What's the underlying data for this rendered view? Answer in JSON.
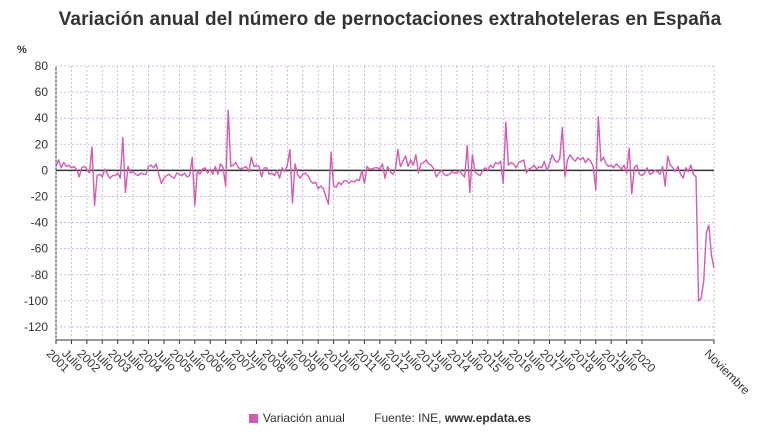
{
  "chart_data": {
    "type": "line",
    "title": "Variación anual del número de pernoctaciones extrahoteleras en España",
    "ylabel": "%",
    "ylim": [
      -130,
      80
    ],
    "yticks": [
      80,
      60,
      40,
      20,
      0,
      -20,
      -40,
      -60,
      -80,
      -100,
      -120
    ],
    "x_tick_labels": [
      "2001",
      "Julio",
      "2002",
      "Julio",
      "2003",
      "Julio",
      "2004",
      "Julio",
      "2005",
      "Julio",
      "2006",
      "Julio",
      "2007",
      "Julio",
      "2008",
      "Julio",
      "2009",
      "Julio",
      "2010",
      "Julio",
      "2011",
      "Julio",
      "2012",
      "Julio",
      "2013",
      "Julio",
      "2014",
      "Julio",
      "2015",
      "Julio",
      "2016",
      "Julio",
      "2017",
      "Julio",
      "2018",
      "Julio",
      "2019",
      "Julio",
      "2020",
      "Noviembre"
    ],
    "x_start": "2001-01",
    "x_end": "2020-11",
    "grid": true,
    "series": [
      {
        "name": "Variación anual",
        "color": "#d35bb4",
        "values": [
          3,
          8,
          2,
          6,
          3,
          4,
          2,
          3,
          1,
          -5,
          2,
          3,
          1,
          -2,
          18,
          -27,
          -4,
          -3,
          -5,
          1,
          -3,
          -6,
          -4,
          -4,
          -2,
          -6,
          25,
          -17,
          3,
          -2,
          -1,
          -3,
          -4,
          -2,
          -3,
          -3,
          3,
          4,
          2,
          5,
          -3,
          -10,
          -6,
          -4,
          -3,
          -5,
          -6,
          -2,
          -3,
          -4,
          -2,
          -5,
          -4,
          10,
          -27,
          0,
          -3,
          1,
          2,
          -2,
          1,
          -3,
          3,
          -3,
          5,
          2,
          -12,
          46,
          3,
          4,
          6,
          2,
          1,
          2,
          3,
          -1,
          10,
          3,
          4,
          3,
          -5,
          2,
          2,
          -3,
          -2,
          -4,
          0,
          -6,
          2,
          -1,
          4,
          16,
          -25,
          5,
          -3,
          -6,
          -3,
          -2,
          -4,
          -8,
          -10,
          -9,
          -14,
          -12,
          -14,
          -20,
          -26,
          14,
          -12,
          -13,
          -9,
          -11,
          -8,
          -8,
          -10,
          -8,
          -9,
          -7,
          -8,
          0,
          -10,
          3,
          1,
          1,
          2,
          2,
          1,
          5,
          -6,
          3,
          -1,
          -3,
          0,
          16,
          3,
          7,
          11,
          3,
          8,
          4,
          12,
          -2,
          5,
          6,
          8,
          5,
          4,
          1,
          -5,
          -2,
          0,
          -3,
          -4,
          -3,
          -1,
          -2,
          -2,
          0,
          -3,
          -5,
          19,
          -17,
          12,
          -1,
          -3,
          -4,
          0,
          2,
          0,
          4,
          2,
          6,
          5,
          7,
          -10,
          37,
          4,
          6,
          5,
          2,
          6,
          7,
          8,
          -2,
          1,
          2,
          4,
          1,
          3,
          2,
          7,
          0,
          5,
          12,
          8,
          6,
          9,
          33,
          -5,
          8,
          12,
          9,
          7,
          10,
          8,
          10,
          6,
          9,
          7,
          3,
          -15,
          41,
          7,
          10,
          5,
          3,
          4,
          2,
          5,
          3,
          1,
          4,
          -2,
          17,
          -18,
          2,
          4,
          -3,
          -4,
          -2,
          2,
          -3,
          -2,
          0,
          -1,
          -3,
          3,
          -12,
          11,
          4,
          2,
          -1,
          3,
          -3,
          -6,
          2,
          -1,
          4,
          -3,
          -5,
          -100,
          -98,
          -85,
          -48,
          -42,
          -65,
          -75
        ]
      }
    ],
    "legend_position": "bottom"
  },
  "legend": {
    "series_label": "Variación anual",
    "source": "Fuente: INE, ",
    "source_bold": "www.epdata.es"
  }
}
